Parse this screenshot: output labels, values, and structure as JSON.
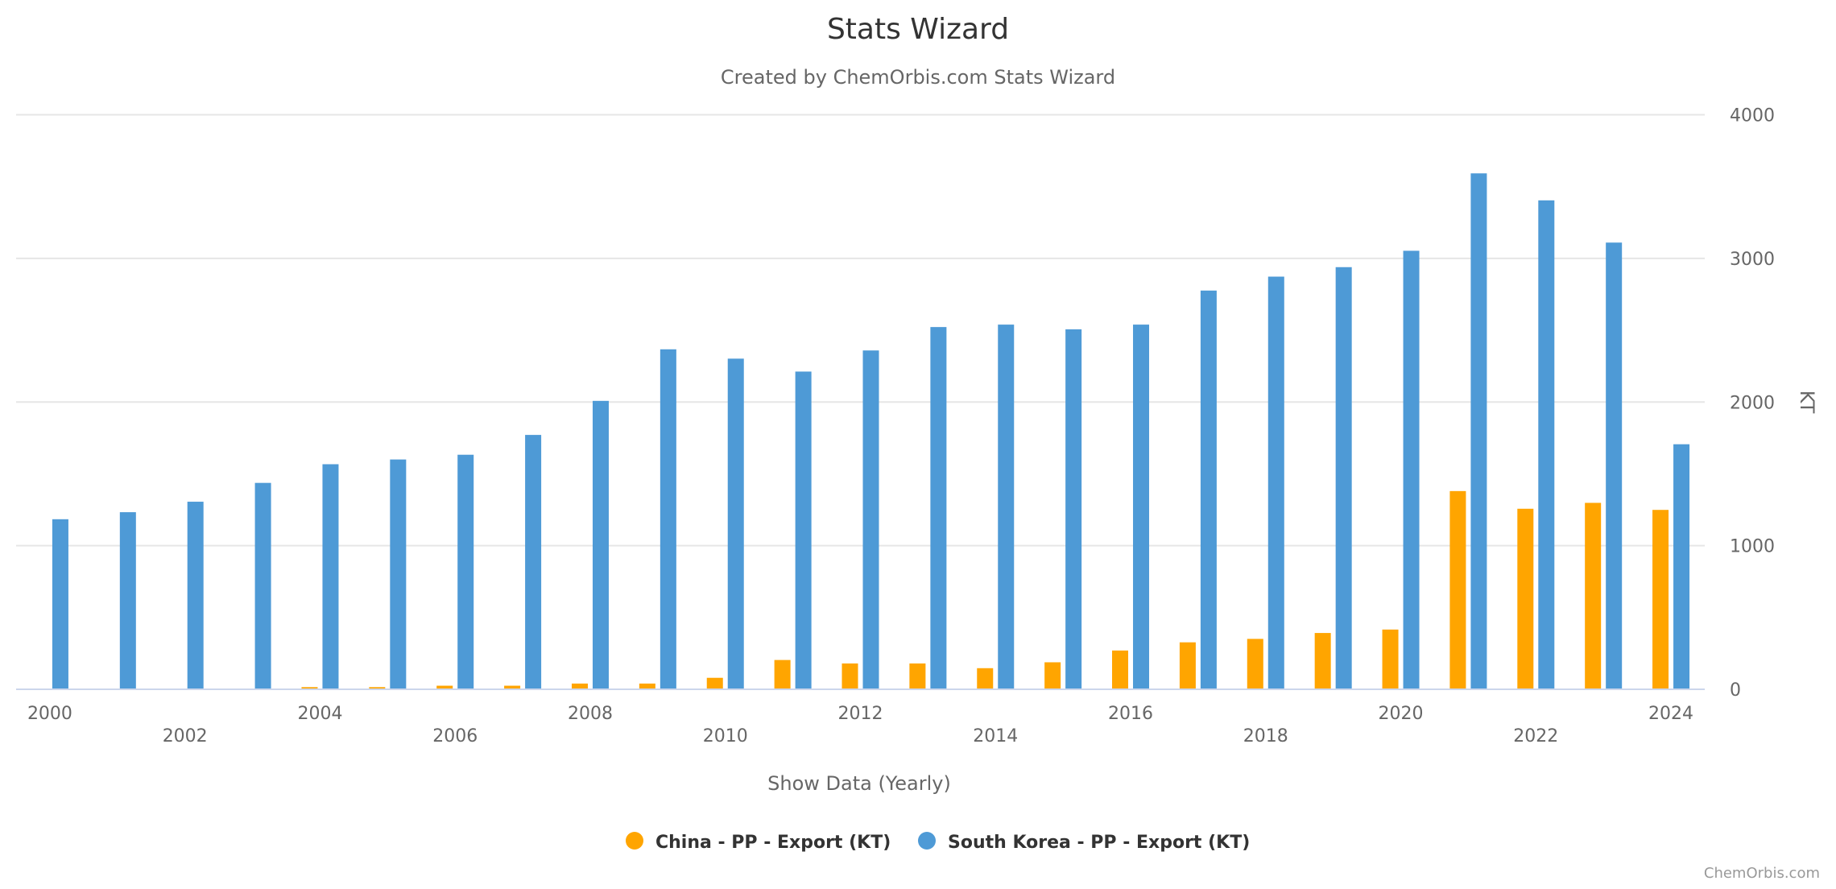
{
  "chart_data": {
    "type": "bar",
    "title": "Stats Wizard",
    "subtitle": "Created by ChemOrbis.com Stats Wizard",
    "xlabel": "Show Data (Yearly)",
    "ylabel": "KT",
    "ylim": [
      0,
      4000
    ],
    "yticks": [
      0,
      1000,
      2000,
      3000,
      4000
    ],
    "grid": true,
    "legend_position": "bottom-center",
    "categories": [
      "2000",
      "2001",
      "2002",
      "2003",
      "2004",
      "2005",
      "2006",
      "2007",
      "2008",
      "2009",
      "2010",
      "2011",
      "2012",
      "2013",
      "2014",
      "2015",
      "2016",
      "2017",
      "2018",
      "2019",
      "2020",
      "2021",
      "2022",
      "2023",
      "2024"
    ],
    "xtick_labels": [
      "2000",
      "2002",
      "2004",
      "2006",
      "2008",
      "2010",
      "2012",
      "2014",
      "2016",
      "2018",
      "2020",
      "2022",
      "2024"
    ],
    "series": [
      {
        "name": "China - PP - Export (KT)",
        "color": "#FFA500",
        "values": [
          0,
          0,
          0,
          0,
          15,
          15,
          25,
          25,
          40,
          40,
          80,
          204,
          180,
          180,
          147,
          188,
          270,
          327,
          351,
          392,
          416,
          1380,
          1257,
          1298,
          1249
        ]
      },
      {
        "name": "South Korea - PP - Export (KT)",
        "color": "#4E9AD6",
        "values": [
          1184,
          1233,
          1306,
          1437,
          1567,
          1600,
          1633,
          1771,
          2008,
          2367,
          2302,
          2212,
          2359,
          2522,
          2539,
          2506,
          2539,
          2776,
          2873,
          2939,
          3053,
          3592,
          3404,
          3110,
          1706
        ]
      }
    ],
    "credit": "ChemOrbis.com"
  }
}
